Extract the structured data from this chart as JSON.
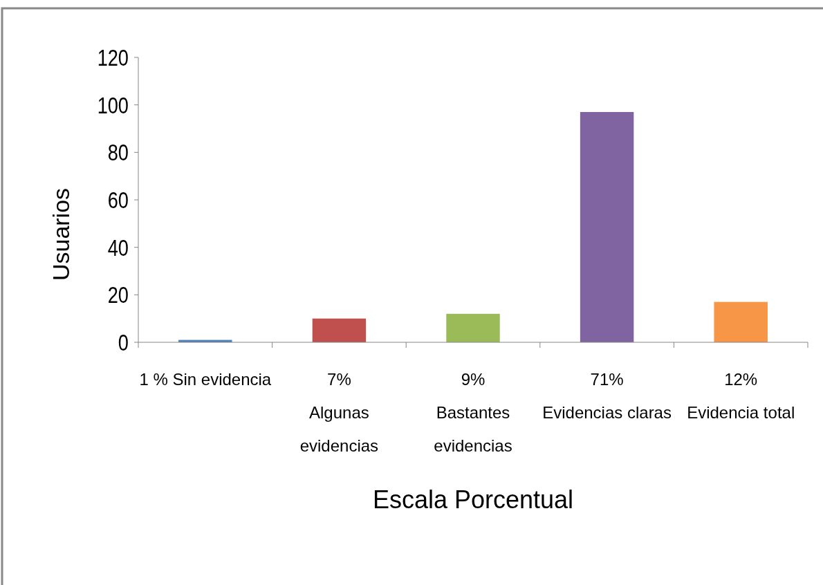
{
  "chart_data": {
    "type": "bar",
    "xlabel": "Escala Porcentual",
    "ylabel": "Usuarios",
    "categories": [
      "1 %  Sin evidencia",
      "7%\nAlgunas\nevidencias",
      "9%\nBastantes\nevidencias",
      "71%\nEvidencias claras",
      "12%\nEvidencia total"
    ],
    "values": [
      1,
      10,
      12,
      97,
      17
    ],
    "colors": [
      "#4f81bd",
      "#c0504d",
      "#9bbb59",
      "#8064a2",
      "#f79646"
    ],
    "ylim": [
      0,
      120
    ],
    "yticks": [
      0,
      20,
      40,
      60,
      80,
      100,
      120
    ],
    "grid": false
  }
}
